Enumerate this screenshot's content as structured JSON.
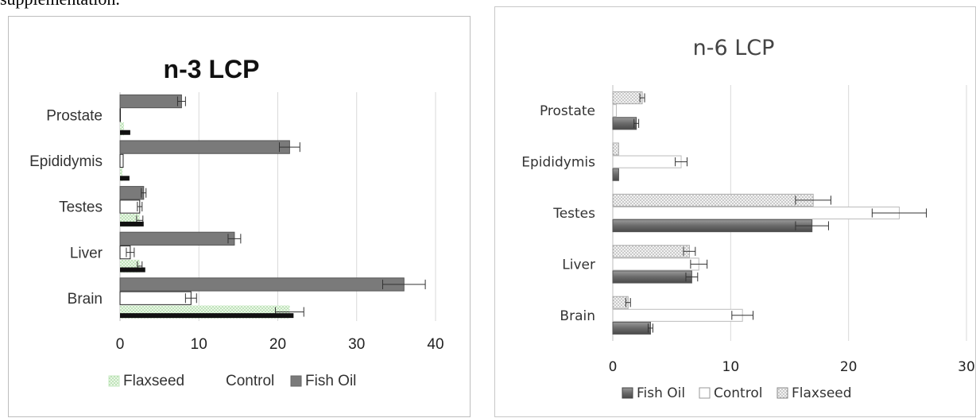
{
  "caption": "supplementation.",
  "chart_data": [
    {
      "type": "bar",
      "orientation": "horizontal",
      "title": "n-3 LCP",
      "categories": [
        "Brain",
        "Liver",
        "Testes",
        "Epididymis",
        "Prostate"
      ],
      "xlim": [
        0,
        40
      ],
      "xticks": [
        "0",
        "10",
        "20",
        "30",
        "40"
      ],
      "grid": "vertical",
      "legend_position": "bottom",
      "series": [
        {
          "name": "Flaxseed",
          "values": [
            21.5,
            2.5,
            2.5,
            0.3,
            0.5
          ],
          "errors": [
            1.8,
            0.3,
            0.4,
            0.0,
            0.0
          ],
          "color": "#c6e8c0"
        },
        {
          "name": "Control",
          "values": [
            9.0,
            1.3,
            2.5,
            0.4,
            0.0
          ],
          "errors": [
            0.7,
            0.5,
            0.3,
            0.0,
            0.0
          ],
          "color": "#ffffff"
        },
        {
          "name": "Fish Oil",
          "values": [
            36.0,
            14.5,
            3.0,
            21.5,
            7.8
          ],
          "errors": [
            2.7,
            0.8,
            0.3,
            1.3,
            0.5
          ],
          "color": "#808080"
        }
      ]
    },
    {
      "type": "bar",
      "orientation": "horizontal",
      "title": "n-6 LCP",
      "categories": [
        "Brain",
        "Liver",
        "Testes",
        "Epididymis",
        "Prostate"
      ],
      "xlim": [
        0,
        30
      ],
      "xticks": [
        "0",
        "10",
        "20",
        "30"
      ],
      "grid": "vertical",
      "legend_position": "bottom",
      "series": [
        {
          "name": "Fish Oil",
          "values": [
            3.2,
            6.7,
            16.9,
            0.5,
            2.0
          ],
          "errors": [
            0.2,
            0.5,
            1.4,
            0.0,
            0.2
          ],
          "color": "#707070"
        },
        {
          "name": "Control",
          "values": [
            11.0,
            7.3,
            24.3,
            5.8,
            0.3
          ],
          "errors": [
            0.9,
            0.7,
            2.3,
            0.5,
            0.0
          ],
          "color": "#ffffff"
        },
        {
          "name": "Flaxseed",
          "values": [
            1.3,
            6.5,
            17.0,
            0.5,
            2.5
          ],
          "errors": [
            0.2,
            0.5,
            1.5,
            0.0,
            0.2
          ],
          "color": "#dcdcdc"
        }
      ]
    }
  ]
}
